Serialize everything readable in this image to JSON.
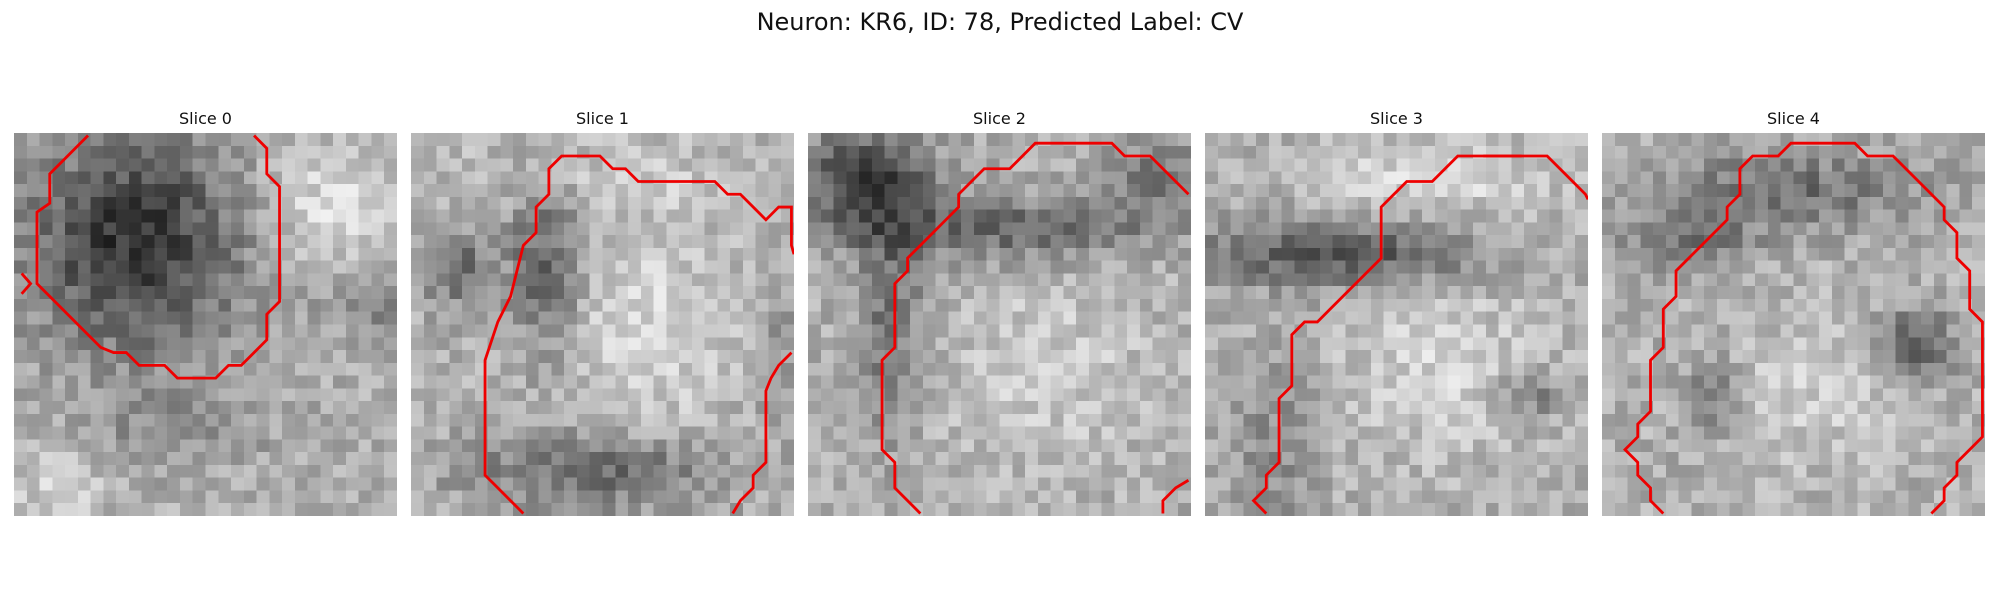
{
  "figure": {
    "title": "Neuron: KR6, ID: 78, Predicted Label: CV"
  },
  "colors": {
    "contour": "#ee0000",
    "background": "#ffffff"
  },
  "panels": [
    {
      "label": "Slice 0",
      "blobs": [
        {
          "cx": 9,
          "cy": 8,
          "rx": 8.5,
          "ry": 8.5,
          "d": -125
        },
        {
          "cx": 24,
          "cy": 5,
          "rx": 6,
          "ry": 5,
          "d": 45
        },
        {
          "cx": 27,
          "cy": 13,
          "rx": 3,
          "ry": 2,
          "d": -50
        },
        {
          "cx": 10,
          "cy": 23,
          "rx": 9,
          "ry": 3,
          "d": -30
        },
        {
          "cx": 3,
          "cy": 26,
          "rx": 4,
          "ry": 4,
          "d": 40
        }
      ]
    },
    {
      "label": "Slice 1",
      "blobs": [
        {
          "cx": 10,
          "cy": 10,
          "rx": 3,
          "ry": 7,
          "d": -80
        },
        {
          "cx": 3,
          "cy": 10,
          "rx": 2.5,
          "ry": 3,
          "d": -70
        },
        {
          "cx": 18,
          "cy": 15,
          "rx": 8,
          "ry": 8,
          "d": 40
        },
        {
          "cx": 14,
          "cy": 26,
          "rx": 10,
          "ry": 3,
          "d": -70
        },
        {
          "cx": 28,
          "cy": 17,
          "rx": 2,
          "ry": 4,
          "d": -40
        },
        {
          "cx": 15,
          "cy": 3,
          "rx": 12,
          "ry": 3,
          "d": 25
        }
      ]
    },
    {
      "label": "Slice 2",
      "blobs": [
        {
          "cx": 4,
          "cy": 3,
          "rx": 5,
          "ry": 4,
          "d": -110
        },
        {
          "cx": 15,
          "cy": 7,
          "rx": 12,
          "ry": 2.5,
          "d": -75
        },
        {
          "cx": 6,
          "cy": 14,
          "rx": 2.5,
          "ry": 9,
          "d": -60
        },
        {
          "cx": 18,
          "cy": 18,
          "rx": 8,
          "ry": 8,
          "d": 30
        },
        {
          "cx": 27,
          "cy": 3,
          "rx": 4,
          "ry": 3,
          "d": -60
        }
      ]
    },
    {
      "label": "Slice 3",
      "blobs": [
        {
          "cx": 10,
          "cy": 9,
          "rx": 11,
          "ry": 2.5,
          "d": -95
        },
        {
          "cx": 18,
          "cy": 3,
          "rx": 10,
          "ry": 3,
          "d": 40
        },
        {
          "cx": 18,
          "cy": 18,
          "rx": 8,
          "ry": 7,
          "d": 35
        },
        {
          "cx": 25,
          "cy": 20,
          "rx": 2.5,
          "ry": 2,
          "d": -60
        },
        {
          "cx": 5,
          "cy": 24,
          "rx": 3,
          "ry": 7,
          "d": -35
        }
      ]
    },
    {
      "label": "Slice 4",
      "blobs": [
        {
          "cx": 14,
          "cy": 4,
          "rx": 10,
          "ry": 3,
          "d": -65
        },
        {
          "cx": 6,
          "cy": 8,
          "rx": 5,
          "ry": 2.5,
          "d": -55
        },
        {
          "cx": 24,
          "cy": 16,
          "rx": 3,
          "ry": 2.5,
          "d": -90
        },
        {
          "cx": 8,
          "cy": 20,
          "rx": 2,
          "ry": 3,
          "d": -60
        },
        {
          "cx": 16,
          "cy": 20,
          "rx": 7,
          "ry": 6,
          "d": 30
        }
      ]
    }
  ]
}
